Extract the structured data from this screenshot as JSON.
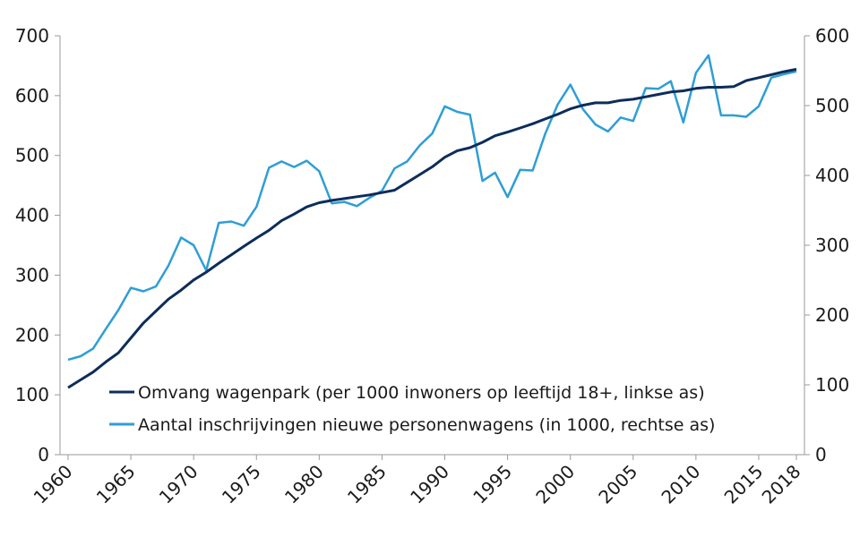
{
  "chart_data": {
    "type": "line",
    "title": "",
    "xlabel": "",
    "ylabel": "",
    "x_ticks": [
      "1960",
      "1965",
      "1970",
      "1975",
      "1980",
      "1985",
      "1990",
      "1995",
      "2000",
      "2005",
      "2010",
      "2015",
      "2018"
    ],
    "y_left_ticks": [
      "0",
      "100",
      "200",
      "300",
      "400",
      "500",
      "600",
      "700"
    ],
    "y_right_ticks": [
      "0",
      "100",
      "200",
      "300",
      "400",
      "500",
      "600"
    ],
    "ylim_left": [
      0,
      700
    ],
    "ylim_right": [
      0,
      600
    ],
    "xlim": [
      1960,
      2018
    ],
    "grid": false,
    "legend_position": "bottom-right",
    "x": [
      1960,
      1961,
      1962,
      1963,
      1964,
      1965,
      1966,
      1967,
      1968,
      1969,
      1970,
      1971,
      1972,
      1973,
      1974,
      1975,
      1976,
      1977,
      1978,
      1979,
      1980,
      1981,
      1982,
      1983,
      1984,
      1985,
      1986,
      1987,
      1988,
      1989,
      1990,
      1991,
      1992,
      1993,
      1994,
      1995,
      1996,
      1997,
      1998,
      1999,
      2000,
      2001,
      2002,
      2003,
      2004,
      2005,
      2006,
      2007,
      2008,
      2009,
      2010,
      2011,
      2012,
      2013,
      2014,
      2015,
      2016,
      2017,
      2018
    ],
    "series": [
      {
        "name": "Omvang wagenpark (per 1000 inwoners op leeftijd 18+, linkse as)",
        "axis": "left",
        "color": "#0d2d5a",
        "values": [
          112,
          125,
          138,
          155,
          170,
          195,
          220,
          240,
          260,
          275,
          292,
          305,
          320,
          334,
          348,
          362,
          375,
          391,
          402,
          414,
          421,
          425,
          428,
          431,
          434,
          438,
          442,
          455,
          468,
          481,
          497,
          508,
          513,
          522,
          533,
          539,
          546,
          553,
          561,
          569,
          578,
          584,
          588,
          588,
          592,
          594,
          598,
          602,
          606,
          608,
          612,
          614,
          614,
          615,
          625,
          630,
          635,
          640,
          644
        ]
      },
      {
        "name": "Aantal inschrijvingen nieuwe personenwagens (in 1000, rechtse as)",
        "axis": "right",
        "color": "#2e9ed6",
        "values": [
          136,
          141,
          152,
          180,
          207,
          239,
          234,
          241,
          271,
          311,
          300,
          264,
          332,
          334,
          328,
          355,
          411,
          420,
          412,
          421,
          406,
          360,
          362,
          356,
          368,
          378,
          410,
          420,
          443,
          460,
          499,
          491,
          487,
          392,
          404,
          369,
          408,
          407,
          460,
          502,
          530,
          495,
          473,
          463,
          483,
          478,
          525,
          524,
          535,
          476,
          547,
          572,
          486,
          486,
          484,
          499,
          540,
          545,
          549
        ]
      }
    ]
  }
}
